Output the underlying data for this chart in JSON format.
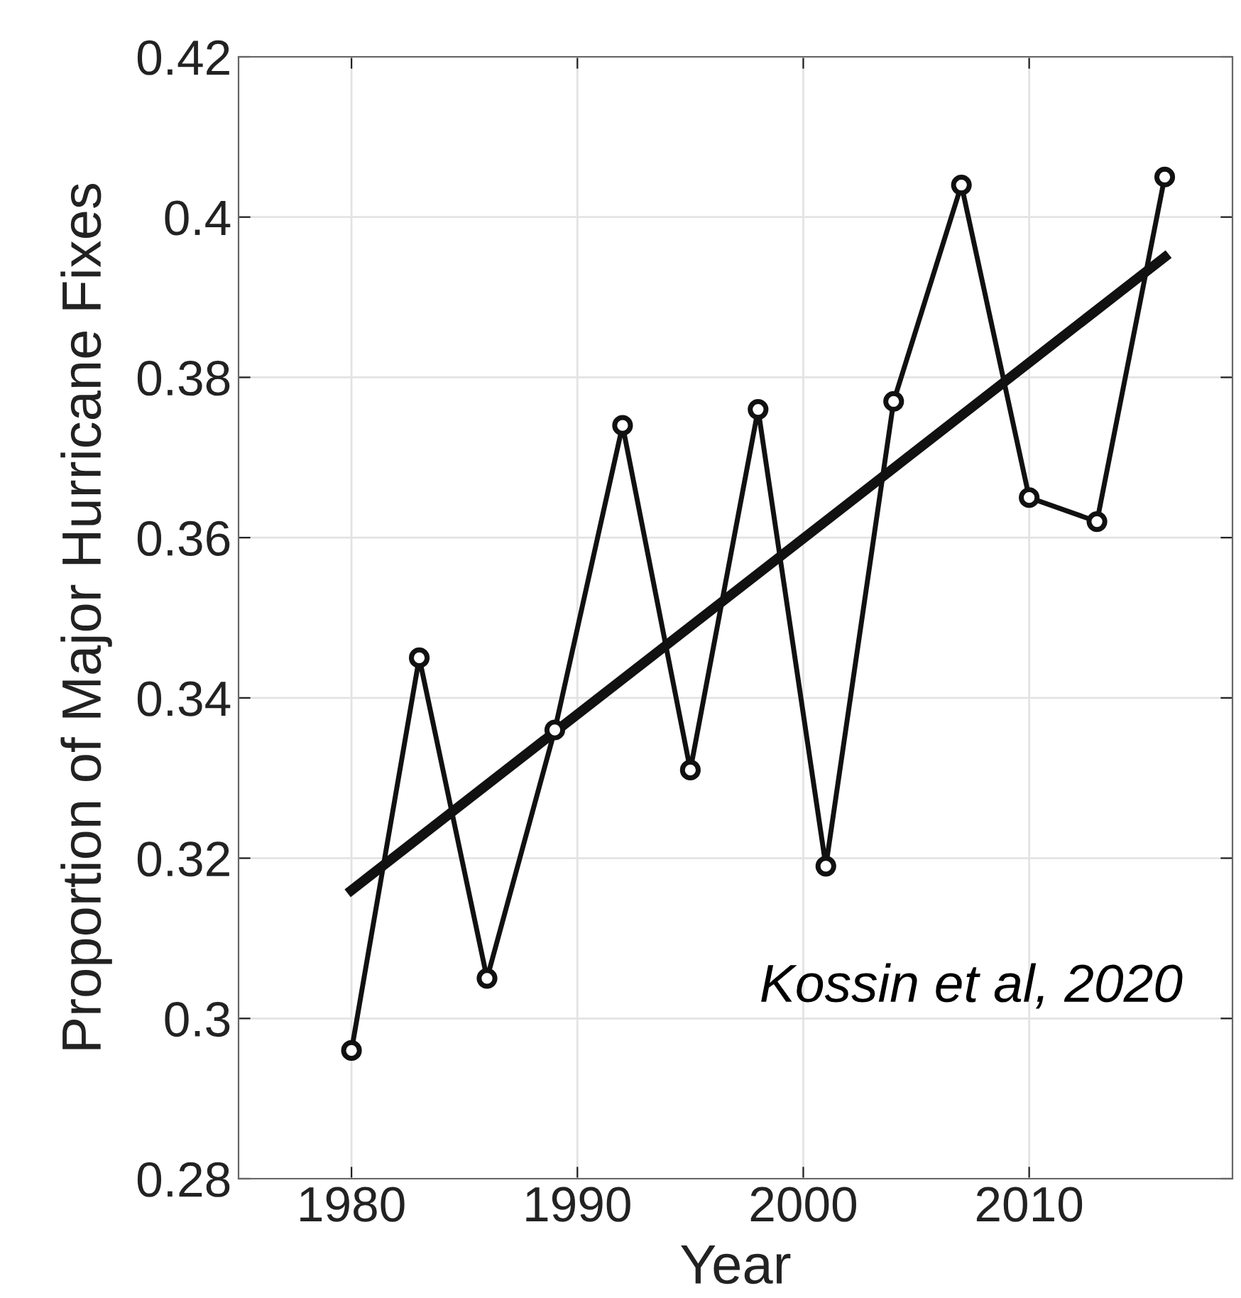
{
  "chart_data": {
    "type": "line",
    "xlabel": "Year",
    "ylabel": "Proportion of Major Hurricane Fixes",
    "series": [
      {
        "color": "#111111",
        "marker": "circle",
        "x": [
          1980,
          1983,
          1986,
          1989,
          1992,
          1995,
          1998,
          2001,
          2004,
          2007,
          2010,
          2013,
          2016
        ],
        "values": [
          0.296,
          0.345,
          0.305,
          0.336,
          0.374,
          0.331,
          0.376,
          0.319,
          0.377,
          0.404,
          0.365,
          0.362,
          0.405
        ]
      },
      {
        "color": "#111111",
        "marker": "none",
        "x": [
          1980,
          2016
        ],
        "values": [
          0.316,
          0.395
        ]
      }
    ],
    "xlim": [
      1975,
      2019
    ],
    "xticks": [
      1980,
      1990,
      2000,
      2010
    ],
    "ylim": [
      0.28,
      0.42
    ],
    "yticks": [
      0.28,
      0.3,
      0.32,
      0.34,
      0.36,
      0.38,
      0.4,
      0.42
    ],
    "grid": true,
    "line_style": "solid",
    "annotations": [
      {
        "text": "Kossin et al, 2020"
      }
    ]
  }
}
